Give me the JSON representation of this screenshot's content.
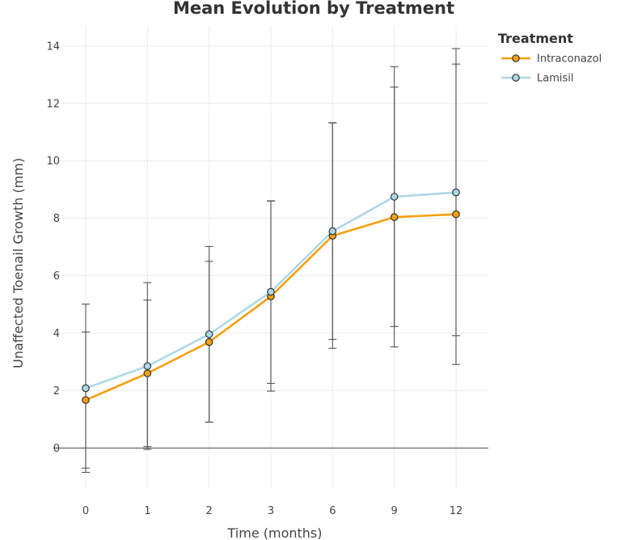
{
  "chart_data": {
    "type": "line",
    "title": "Mean Evolution by Treatment",
    "xlabel": "Time (months)",
    "ylabel": "Unaffected Toenail Growth (mm)",
    "categories": [
      "0",
      "1",
      "2",
      "3",
      "6",
      "9",
      "12"
    ],
    "ylim": [
      -1.4,
      14.7
    ],
    "yticks": [
      0,
      2,
      4,
      6,
      8,
      10,
      12,
      14
    ],
    "grid": true,
    "legend": {
      "title": "Treatment",
      "position": "top-right"
    },
    "series": [
      {
        "name": "Intraconazol",
        "color": "#f5a00f",
        "values": [
          1.67,
          2.6,
          3.69,
          5.28,
          7.39,
          8.04,
          8.14
        ],
        "error_low": [
          -0.7,
          0.05,
          0.9,
          2.25,
          3.47,
          3.52,
          2.91
        ],
        "error_high": [
          4.04,
          5.15,
          6.5,
          8.6,
          11.32,
          12.57,
          13.37
        ]
      },
      {
        "name": "Lamisil",
        "color": "#add8e6",
        "values": [
          2.08,
          2.85,
          3.96,
          5.44,
          7.55,
          8.75,
          8.9
        ],
        "error_low": [
          -0.85,
          -0.05,
          0.9,
          1.98,
          3.78,
          4.23,
          3.91
        ],
        "error_high": [
          5.01,
          5.76,
          7.02,
          8.61,
          11.33,
          13.28,
          13.91
        ]
      }
    ]
  }
}
